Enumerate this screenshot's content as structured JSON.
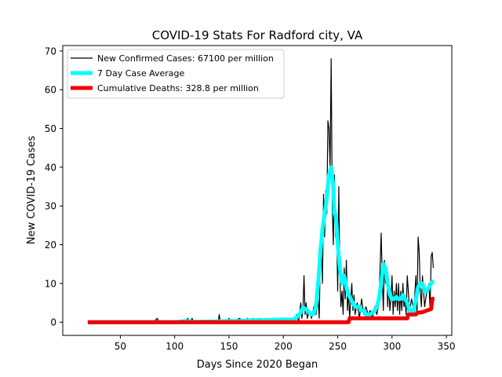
{
  "chart_data": {
    "type": "line",
    "title": "COVID-19 Stats For Radford city, VA",
    "xlabel": "Days Since 2020 Began",
    "ylabel": "New COVID-19 Cases",
    "xlim": [
      -3,
      355
    ],
    "ylim": [
      -3.4,
      71.4
    ],
    "xticks": [
      50,
      100,
      150,
      200,
      250,
      300,
      350
    ],
    "yticks": [
      0,
      10,
      20,
      30,
      40,
      50,
      60,
      70
    ],
    "grid": false,
    "legend_position": "top-left",
    "series": [
      {
        "name": "New Confirmed Cases: 67100 per million",
        "color": "#000000",
        "points": [
          [
            20,
            0
          ],
          [
            80,
            0
          ],
          [
            84,
            1
          ],
          [
            86,
            0
          ],
          [
            110,
            0
          ],
          [
            112,
            1
          ],
          [
            114,
            0
          ],
          [
            116,
            1
          ],
          [
            118,
            0
          ],
          [
            140,
            0
          ],
          [
            141,
            2
          ],
          [
            142,
            0
          ],
          [
            148,
            0
          ],
          [
            150,
            1
          ],
          [
            152,
            0
          ],
          [
            160,
            1
          ],
          [
            162,
            0
          ],
          [
            165,
            0
          ],
          [
            167,
            1
          ],
          [
            169,
            0
          ],
          [
            172,
            1
          ],
          [
            174,
            0
          ],
          [
            178,
            1
          ],
          [
            180,
            0
          ],
          [
            184,
            1
          ],
          [
            186,
            0
          ],
          [
            190,
            1
          ],
          [
            192,
            0
          ],
          [
            195,
            1
          ],
          [
            197,
            0
          ],
          [
            200,
            1
          ],
          [
            202,
            0
          ],
          [
            205,
            1
          ],
          [
            207,
            0
          ],
          [
            210,
            0
          ],
          [
            212,
            2
          ],
          [
            214,
            0
          ],
          [
            216,
            5
          ],
          [
            217,
            1
          ],
          [
            218,
            3
          ],
          [
            219,
            12
          ],
          [
            220,
            2
          ],
          [
            221,
            5
          ],
          [
            222,
            1
          ],
          [
            224,
            3
          ],
          [
            226,
            1
          ],
          [
            228,
            4
          ],
          [
            230,
            2
          ],
          [
            232,
            6
          ],
          [
            233,
            1
          ],
          [
            234,
            16
          ],
          [
            235,
            20
          ],
          [
            236,
            10
          ],
          [
            237,
            33
          ],
          [
            238,
            22
          ],
          [
            239,
            34
          ],
          [
            240,
            28
          ],
          [
            241,
            52
          ],
          [
            242,
            50
          ],
          [
            243,
            40
          ],
          [
            244,
            68
          ],
          [
            245,
            30
          ],
          [
            246,
            20
          ],
          [
            247,
            38
          ],
          [
            248,
            22
          ],
          [
            249,
            25
          ],
          [
            250,
            8
          ],
          [
            251,
            35
          ],
          [
            252,
            12
          ],
          [
            253,
            4
          ],
          [
            254,
            8
          ],
          [
            255,
            2
          ],
          [
            256,
            14
          ],
          [
            257,
            6
          ],
          [
            258,
            16
          ],
          [
            259,
            3
          ],
          [
            260,
            8
          ],
          [
            261,
            1
          ],
          [
            262,
            6
          ],
          [
            263,
            10
          ],
          [
            264,
            3
          ],
          [
            265,
            7
          ],
          [
            266,
            2
          ],
          [
            268,
            5
          ],
          [
            270,
            1
          ],
          [
            272,
            6
          ],
          [
            274,
            2
          ],
          [
            276,
            4
          ],
          [
            278,
            2
          ],
          [
            280,
            3
          ],
          [
            282,
            1
          ],
          [
            284,
            4
          ],
          [
            286,
            2
          ],
          [
            288,
            5
          ],
          [
            290,
            23
          ],
          [
            291,
            12
          ],
          [
            292,
            3
          ],
          [
            293,
            16
          ],
          [
            294,
            10
          ],
          [
            295,
            14
          ],
          [
            296,
            4
          ],
          [
            297,
            10
          ],
          [
            298,
            3
          ],
          [
            299,
            6
          ],
          [
            300,
            12
          ],
          [
            301,
            2
          ],
          [
            302,
            8
          ],
          [
            303,
            4
          ],
          [
            304,
            10
          ],
          [
            305,
            3
          ],
          [
            306,
            10
          ],
          [
            307,
            2
          ],
          [
            308,
            8
          ],
          [
            309,
            3
          ],
          [
            310,
            10
          ],
          [
            311,
            4
          ],
          [
            312,
            6
          ],
          [
            313,
            2
          ],
          [
            314,
            12
          ],
          [
            315,
            8
          ],
          [
            316,
            3
          ],
          [
            318,
            6
          ],
          [
            320,
            3
          ],
          [
            322,
            12
          ],
          [
            323,
            2
          ],
          [
            324,
            22
          ],
          [
            325,
            18
          ],
          [
            326,
            8
          ],
          [
            327,
            4
          ],
          [
            328,
            12
          ],
          [
            330,
            4
          ],
          [
            332,
            8
          ],
          [
            334,
            10
          ],
          [
            335,
            3
          ],
          [
            336,
            17
          ],
          [
            337,
            18
          ],
          [
            338,
            14
          ]
        ]
      },
      {
        "name": "7 Day Case Average",
        "color": "#00ffff",
        "points": [
          [
            20,
            0
          ],
          [
            100,
            0
          ],
          [
            110,
            0.3
          ],
          [
            120,
            0.1
          ],
          [
            140,
            0.2
          ],
          [
            150,
            0.3
          ],
          [
            160,
            0.3
          ],
          [
            170,
            0.5
          ],
          [
            180,
            0.5
          ],
          [
            190,
            0.6
          ],
          [
            200,
            0.7
          ],
          [
            208,
            0.6
          ],
          [
            212,
            1.2
          ],
          [
            216,
            2.5
          ],
          [
            218,
            3.8
          ],
          [
            220,
            3.5
          ],
          [
            222,
            3
          ],
          [
            224,
            2.5
          ],
          [
            226,
            2
          ],
          [
            228,
            2.2
          ],
          [
            230,
            4
          ],
          [
            232,
            10
          ],
          [
            234,
            18
          ],
          [
            236,
            24
          ],
          [
            238,
            28
          ],
          [
            240,
            32
          ],
          [
            242,
            38
          ],
          [
            244,
            40
          ],
          [
            246,
            35
          ],
          [
            247,
            28
          ],
          [
            248,
            28
          ],
          [
            249,
            25
          ],
          [
            250,
            20
          ],
          [
            252,
            14
          ],
          [
            254,
            10
          ],
          [
            256,
            12
          ],
          [
            258,
            9
          ],
          [
            260,
            7
          ],
          [
            262,
            6
          ],
          [
            264,
            5
          ],
          [
            266,
            4
          ],
          [
            268,
            4
          ],
          [
            270,
            4
          ],
          [
            272,
            3
          ],
          [
            274,
            3
          ],
          [
            276,
            2
          ],
          [
            278,
            2
          ],
          [
            280,
            2
          ],
          [
            282,
            2.5
          ],
          [
            284,
            3
          ],
          [
            286,
            4
          ],
          [
            288,
            6
          ],
          [
            290,
            10
          ],
          [
            292,
            15
          ],
          [
            294,
            14
          ],
          [
            296,
            10
          ],
          [
            298,
            7
          ],
          [
            300,
            6
          ],
          [
            302,
            6
          ],
          [
            304,
            6.5
          ],
          [
            306,
            6
          ],
          [
            308,
            6
          ],
          [
            310,
            7
          ],
          [
            312,
            6
          ],
          [
            314,
            5
          ],
          [
            316,
            3
          ],
          [
            318,
            3
          ],
          [
            320,
            3
          ],
          [
            322,
            6
          ],
          [
            324,
            9
          ],
          [
            326,
            10
          ],
          [
            328,
            10
          ],
          [
            330,
            8
          ],
          [
            332,
            8
          ],
          [
            334,
            9
          ],
          [
            336,
            10
          ],
          [
            338,
            10.8
          ]
        ]
      },
      {
        "name": "Cumulative Deaths: 328.8 per million",
        "color": "#ee0000",
        "points": [
          [
            20,
            0
          ],
          [
            259,
            0
          ],
          [
            260,
            0
          ],
          [
            261,
            1
          ],
          [
            314,
            1
          ],
          [
            315,
            2
          ],
          [
            322,
            2
          ],
          [
            323,
            2.4
          ],
          [
            328,
            2.6
          ],
          [
            332,
            3
          ],
          [
            336,
            3.4
          ],
          [
            337,
            6
          ],
          [
            339,
            6.1
          ]
        ]
      }
    ]
  }
}
